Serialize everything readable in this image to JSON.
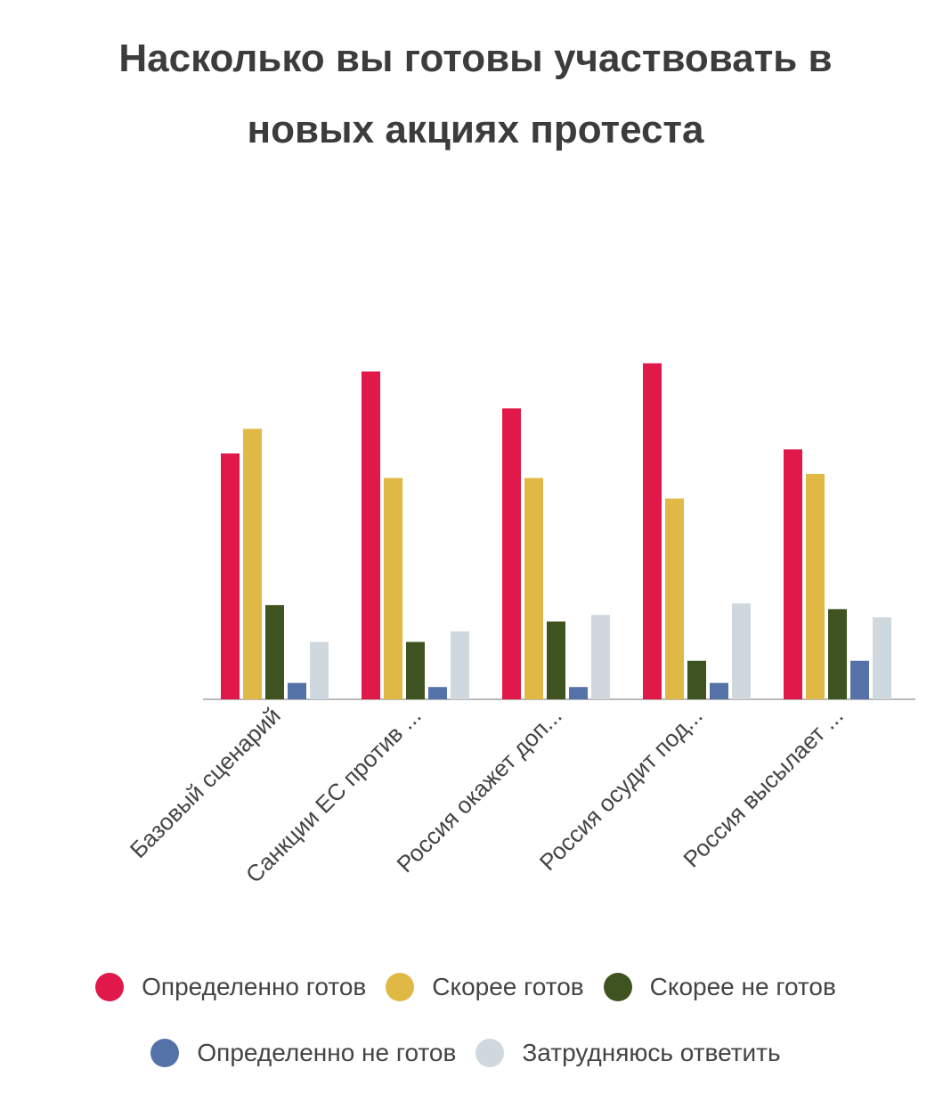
{
  "chart_data": {
    "type": "bar",
    "title_lines": [
      "Насколько вы готовы участвовать в",
      "новых акциях протеста"
    ],
    "categories": [
      "Базовый сценарий",
      "Санкции ЕС против ...",
      "Россия окажет доп...",
      "Россия осудит под...",
      "Россия высылает ..."
    ],
    "series": [
      {
        "name": "Определенно готов",
        "color": "#e0194a",
        "values": [
          30,
          40,
          35.5,
          41,
          30.5
        ]
      },
      {
        "name": "Скорее готов",
        "color": "#e0b845",
        "values": [
          33,
          27,
          27,
          24.5,
          27.5
        ]
      },
      {
        "name": "Скорее не готов",
        "color": "#3f5320",
        "values": [
          11.5,
          7,
          9.5,
          4.7,
          11
        ]
      },
      {
        "name": "Определенно не готов",
        "color": "#5472a8",
        "values": [
          2,
          1.5,
          1.5,
          2,
          4.7
        ]
      },
      {
        "name": "Затрудняюсь ответить",
        "color": "#cfd8df",
        "values": [
          7,
          8.3,
          10.3,
          11.7,
          10
        ]
      }
    ],
    "ylim": [
      0,
      45
    ],
    "grid": false,
    "legend_position": "bottom",
    "xlabel": "",
    "ylabel": ""
  }
}
